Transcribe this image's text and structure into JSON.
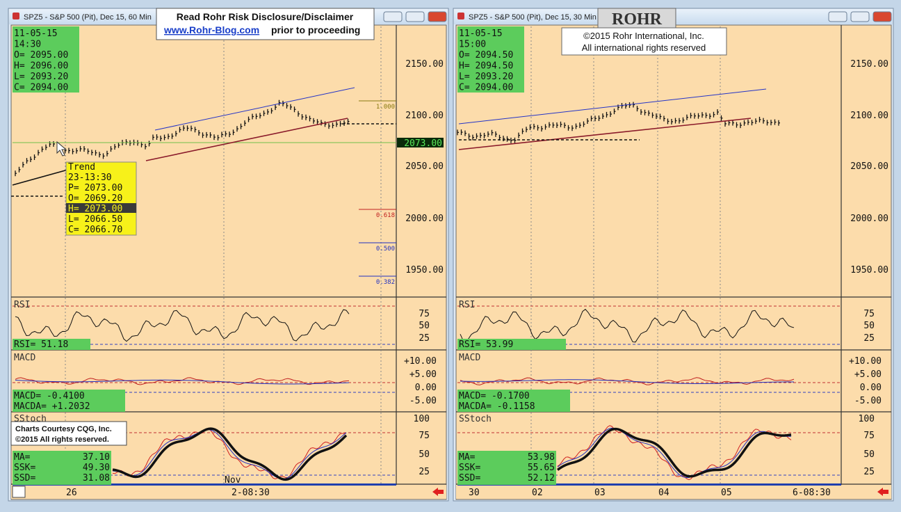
{
  "banner": {
    "line1": "Read Rohr Risk Disclosure/Disclaimer",
    "link": "www.Rohr-Blog.com",
    "link_suffix": "prior to proceeding"
  },
  "logo": "ROHR",
  "copyright": {
    "line1": "©2015 Rohr International, Inc.",
    "line2": "All international rights reserved"
  },
  "credit": {
    "line1": "Charts Courtesy CQG, Inc.",
    "line2": "©2015 All rights reserved."
  },
  "windows": [
    {
      "title": "SPZ5 - S&P 500 (Pit), Dec 15, 60 Min",
      "info": [
        "11-05-15",
        "14:30",
        "O= 2095.00",
        "H= 2096.00",
        "L= 2093.20",
        "C= 2094.00"
      ],
      "price_axis": [
        "2150.00",
        "2100.00",
        "2050.00",
        "2000.00",
        "1950.00"
      ],
      "last_price": "2073.00",
      "fib": [
        "1.000",
        "0.618",
        "0.500",
        "0.382"
      ],
      "trend_box": [
        "Trend",
        "23-13:30",
        "P= 2073.00",
        "O= 2069.20",
        "H= 2073.00",
        "L= 2066.50",
        "C= 2066.70"
      ],
      "rsi": {
        "label": "RSI",
        "readout": "RSI=   51.18",
        "axis": [
          "75",
          "50",
          "25"
        ]
      },
      "macd": {
        "label": "MACD",
        "readout": [
          "MACD=    -0.4100",
          "MACDA=  +1.2032"
        ],
        "axis": [
          "+10.00",
          "+5.00",
          "0.00",
          "-5.00"
        ]
      },
      "sstoch": {
        "label": "SStoch",
        "readout": [
          [
            "MA=",
            "37.10"
          ],
          [
            "SSK=",
            "49.30"
          ],
          [
            "SSD=",
            "31.08"
          ]
        ],
        "axis": [
          "100",
          "75",
          "50",
          "25"
        ]
      },
      "dates": [
        "26",
        "Nov",
        "2-08:30"
      ]
    },
    {
      "title": "SPZ5 - S&P 500 (Pit), Dec 15, 30 Min",
      "info": [
        "11-05-15",
        "15:00",
        "O= 2094.50",
        "H= 2094.50",
        "L= 2093.20",
        "C= 2094.00"
      ],
      "price_axis": [
        "2150.00",
        "2100.00",
        "2050.00",
        "2000.00",
        "1950.00"
      ],
      "rsi": {
        "label": "RSI",
        "readout": "RSI=   53.99",
        "axis": [
          "75",
          "50",
          "25"
        ]
      },
      "macd": {
        "label": "MACD",
        "readout": [
          "MACD=    -0.1700",
          "MACDA=  -0.1158"
        ],
        "axis": [
          "+10.00",
          "+5.00",
          "0.00",
          "-5.00"
        ]
      },
      "sstoch": {
        "label": "SStoch",
        "readout": [
          [
            "MA=",
            "53.98"
          ],
          [
            "SSK=",
            "55.65"
          ],
          [
            "SSD=",
            "52.12"
          ]
        ],
        "axis": [
          "100",
          "75",
          "50",
          "25"
        ]
      },
      "dates": [
        "30",
        "02",
        "03",
        "04",
        "05",
        "6-08:30"
      ]
    }
  ]
}
